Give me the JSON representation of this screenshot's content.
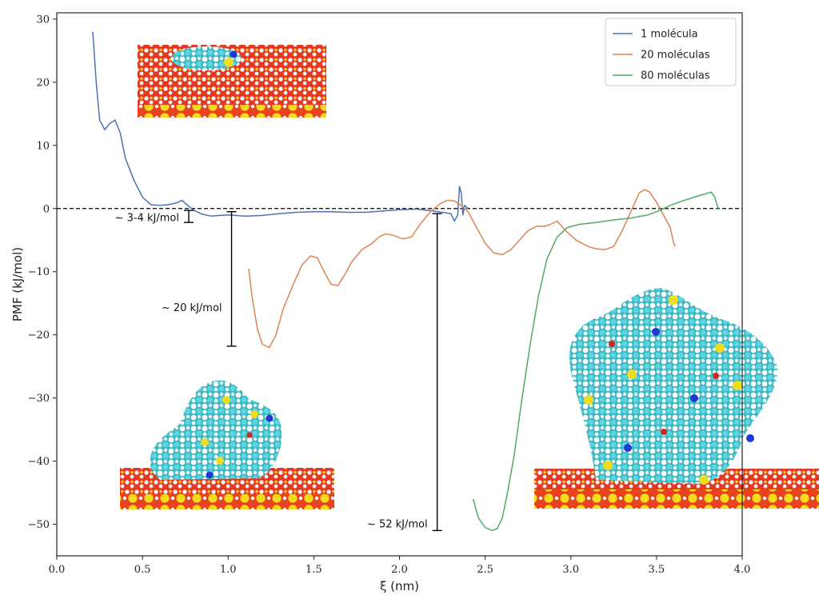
{
  "chart_data": {
    "type": "line",
    "title": "",
    "xlabel": "ξ (nm)",
    "ylabel": "PMF (kJ/mol)",
    "xlim": [
      0.0,
      4.0
    ],
    "ylim": [
      -55,
      31
    ],
    "grid": false,
    "legend_position": "top-right",
    "x_ticks": [
      0.0,
      0.5,
      1.0,
      1.5,
      2.0,
      2.5,
      3.0,
      3.5,
      4.0
    ],
    "x_tick_labels": [
      "0.0",
      "0.5",
      "1.0",
      "1.5",
      "2.0",
      "2.5",
      "3.0",
      "3.5",
      "4.0"
    ],
    "y_ticks": [
      30,
      20,
      10,
      0,
      -10,
      -20,
      -30,
      -40,
      -50
    ],
    "y_tick_labels": [
      "30",
      "20",
      "10",
      "0",
      "−10",
      "−20",
      "−30",
      "−40",
      "−50"
    ],
    "reference_line": {
      "y": 0,
      "style": "dashed",
      "color": "#000000"
    },
    "series": [
      {
        "name": "1 molécula",
        "color": "#4c72b0",
        "points": [
          [
            0.21,
            28
          ],
          [
            0.23,
            20
          ],
          [
            0.25,
            14
          ],
          [
            0.28,
            12.5
          ],
          [
            0.31,
            13.5
          ],
          [
            0.34,
            14
          ],
          [
            0.37,
            12
          ],
          [
            0.4,
            8
          ],
          [
            0.45,
            4.5
          ],
          [
            0.5,
            1.8
          ],
          [
            0.55,
            0.6
          ],
          [
            0.6,
            0.5
          ],
          [
            0.65,
            0.6
          ],
          [
            0.7,
            0.9
          ],
          [
            0.73,
            1.3
          ],
          [
            0.76,
            0.6
          ],
          [
            0.8,
            -0.3
          ],
          [
            0.85,
            -0.9
          ],
          [
            0.9,
            -1.2
          ],
          [
            0.95,
            -1.1
          ],
          [
            1.0,
            -1.0
          ],
          [
            1.1,
            -1.2
          ],
          [
            1.2,
            -1.1
          ],
          [
            1.3,
            -0.8
          ],
          [
            1.4,
            -0.6
          ],
          [
            1.5,
            -0.5
          ],
          [
            1.6,
            -0.5
          ],
          [
            1.7,
            -0.6
          ],
          [
            1.8,
            -0.6
          ],
          [
            1.9,
            -0.4
          ],
          [
            2.0,
            -0.2
          ],
          [
            2.1,
            -0.1
          ],
          [
            2.2,
            -0.4
          ],
          [
            2.25,
            -0.6
          ],
          [
            2.3,
            -0.8
          ],
          [
            2.32,
            -2.0
          ],
          [
            2.34,
            -1.0
          ],
          [
            2.35,
            3.5
          ],
          [
            2.36,
            2.5
          ],
          [
            2.37,
            -1.0
          ],
          [
            2.38,
            0.5
          ],
          [
            2.4,
            0.0
          ]
        ]
      },
      {
        "name": "20 moléculas",
        "color": "#dd8452",
        "points": [
          [
            1.12,
            -9.5
          ],
          [
            1.14,
            -14
          ],
          [
            1.17,
            -19
          ],
          [
            1.2,
            -21.5
          ],
          [
            1.24,
            -22
          ],
          [
            1.28,
            -20
          ],
          [
            1.32,
            -16
          ],
          [
            1.38,
            -12
          ],
          [
            1.43,
            -9
          ],
          [
            1.48,
            -7.5
          ],
          [
            1.52,
            -7.8
          ],
          [
            1.56,
            -10
          ],
          [
            1.6,
            -12
          ],
          [
            1.64,
            -12.2
          ],
          [
            1.68,
            -10.5
          ],
          [
            1.72,
            -8.5
          ],
          [
            1.78,
            -6.5
          ],
          [
            1.84,
            -5.5
          ],
          [
            1.88,
            -4.5
          ],
          [
            1.92,
            -4.0
          ],
          [
            1.97,
            -4.3
          ],
          [
            2.02,
            -4.8
          ],
          [
            2.07,
            -4.5
          ],
          [
            2.12,
            -2.5
          ],
          [
            2.18,
            -0.5
          ],
          [
            2.24,
            0.8
          ],
          [
            2.28,
            1.3
          ],
          [
            2.32,
            1.2
          ],
          [
            2.36,
            0.5
          ],
          [
            2.4,
            -0.5
          ],
          [
            2.45,
            -3.0
          ],
          [
            2.5,
            -5.5
          ],
          [
            2.55,
            -7.0
          ],
          [
            2.6,
            -7.3
          ],
          [
            2.65,
            -6.5
          ],
          [
            2.7,
            -5.0
          ],
          [
            2.75,
            -3.5
          ],
          [
            2.8,
            -2.8
          ],
          [
            2.85,
            -2.8
          ],
          [
            2.88,
            -2.5
          ],
          [
            2.92,
            -2.0
          ],
          [
            2.97,
            -3.5
          ],
          [
            3.03,
            -5.0
          ],
          [
            3.1,
            -6.0
          ],
          [
            3.15,
            -6.4
          ],
          [
            3.2,
            -6.5
          ],
          [
            3.25,
            -6.0
          ],
          [
            3.3,
            -3.5
          ],
          [
            3.35,
            -0.5
          ],
          [
            3.4,
            2.5
          ],
          [
            3.43,
            3.0
          ],
          [
            3.46,
            2.6
          ],
          [
            3.5,
            1.0
          ],
          [
            3.55,
            -1.5
          ],
          [
            3.58,
            -3.0
          ],
          [
            3.6,
            -5.5
          ],
          [
            3.61,
            -6.0
          ]
        ]
      },
      {
        "name": "80 moléculas",
        "color": "#55a868",
        "points": [
          [
            2.43,
            -46
          ],
          [
            2.46,
            -49
          ],
          [
            2.5,
            -50.5
          ],
          [
            2.54,
            -51
          ],
          [
            2.57,
            -50.7
          ],
          [
            2.6,
            -49
          ],
          [
            2.63,
            -45
          ],
          [
            2.67,
            -39
          ],
          [
            2.71,
            -31
          ],
          [
            2.76,
            -22
          ],
          [
            2.81,
            -14
          ],
          [
            2.86,
            -8
          ],
          [
            2.92,
            -4.5
          ],
          [
            2.98,
            -3
          ],
          [
            3.05,
            -2.5
          ],
          [
            3.15,
            -2.2
          ],
          [
            3.25,
            -1.8
          ],
          [
            3.35,
            -1.5
          ],
          [
            3.45,
            -1.0
          ],
          [
            3.52,
            -0.3
          ],
          [
            3.58,
            0.5
          ],
          [
            3.65,
            1.2
          ],
          [
            3.72,
            1.8
          ],
          [
            3.78,
            2.3
          ],
          [
            3.82,
            2.6
          ],
          [
            3.84,
            1.8
          ],
          [
            3.86,
            0.0
          ]
        ]
      }
    ],
    "annotations": [
      {
        "label": "~ 3-4 kJ/mol",
        "x": 0.77,
        "y_top": -0.3,
        "y_bottom": -2.2
      },
      {
        "label": "~ 20 kJ/mol",
        "x": 1.02,
        "y_top": -0.5,
        "y_bottom": -21.8
      },
      {
        "label": "~ 52 kJ/mol",
        "x": 2.22,
        "y_top": -0.8,
        "y_bottom": -51.0
      }
    ]
  }
}
